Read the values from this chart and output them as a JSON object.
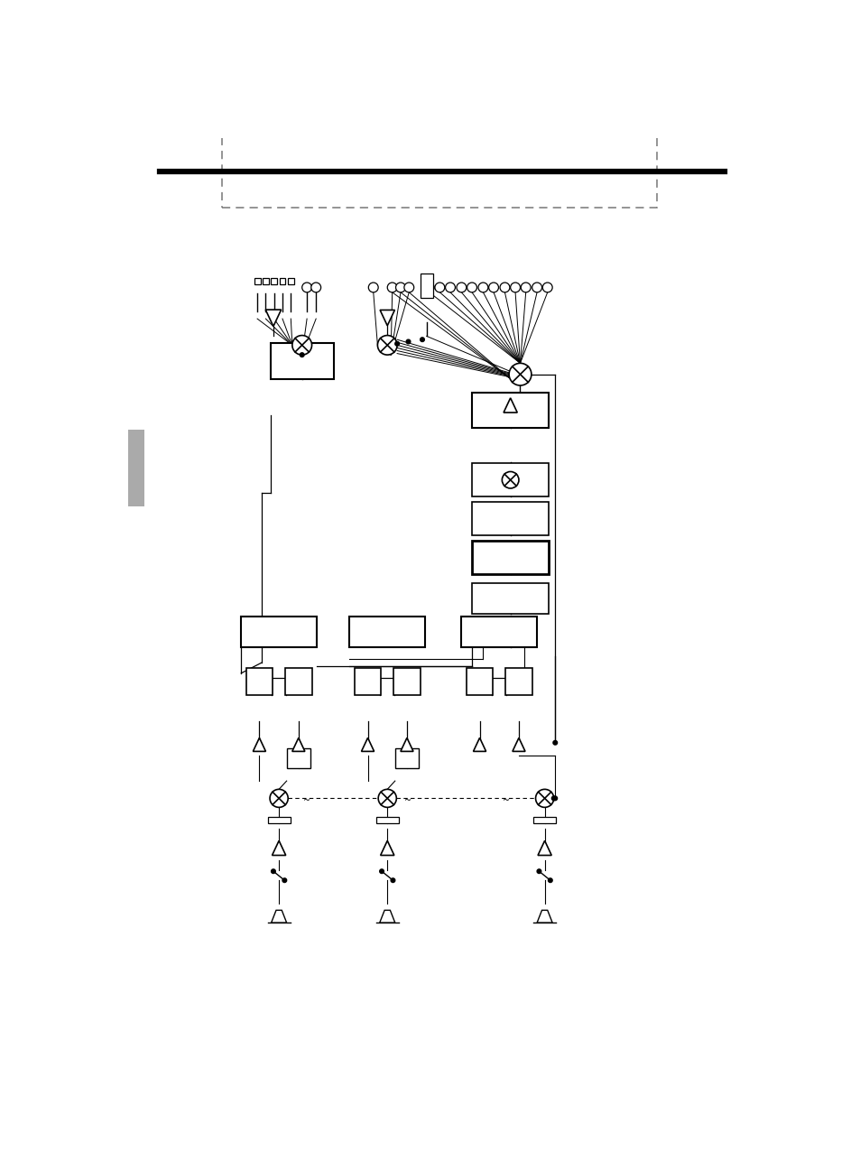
{
  "bg_color": "#ffffff",
  "line_color": "#000000",
  "fig_w": 9.54,
  "fig_h": 12.74,
  "dpi": 100
}
